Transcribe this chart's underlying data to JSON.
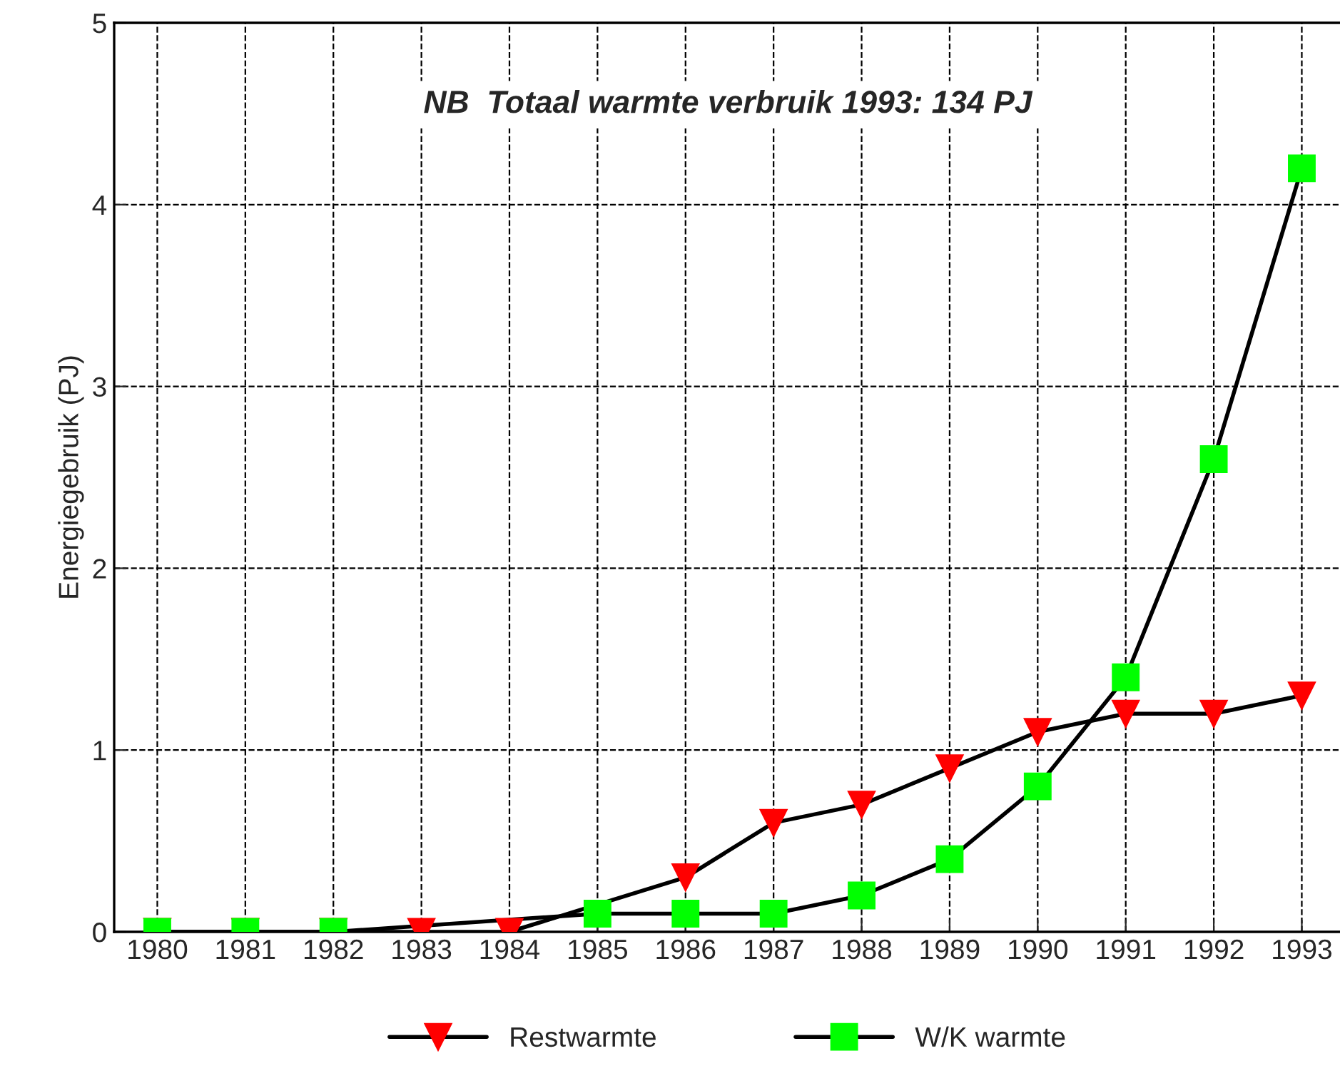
{
  "chart_data": {
    "type": "line",
    "ylabel": "Energiegebruik (PJ)",
    "annotations": [
      "NB  Totaal warmte verbruik 1993: 134 PJ"
    ],
    "categories": [
      "1980",
      "1981",
      "1982",
      "1983",
      "1984",
      "1985",
      "1986",
      "1987",
      "1988",
      "1989",
      "1990",
      "1991",
      "1992",
      "1993"
    ],
    "series": [
      {
        "name": "Restwarmte",
        "color": "#ff0000",
        "marker": "triangle",
        "values": [
          0,
          0,
          0,
          0,
          0,
          null,
          0.3,
          0.6,
          0.7,
          0.9,
          1.1,
          1.2,
          1.2,
          1.3
        ]
      },
      {
        "name": "W/K warmte",
        "color": "#00ff00",
        "marker": "square",
        "values": [
          0,
          0,
          0,
          null,
          null,
          0.1,
          0.1,
          0.1,
          0.2,
          0.4,
          0.8,
          1.4,
          2.6,
          4.2
        ]
      }
    ],
    "ylim": [
      0,
      5
    ],
    "yticks": [
      0,
      1,
      2,
      3,
      4,
      5
    ],
    "grid": true,
    "legend": "bottom",
    "line_style": "solid"
  }
}
